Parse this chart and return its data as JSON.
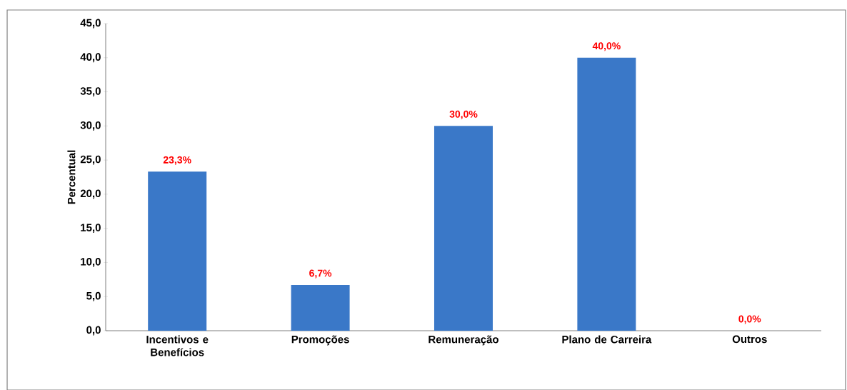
{
  "chart_data": {
    "type": "bar",
    "ylabel": "Percentual",
    "categories": [
      "Incentivos e Benefícios",
      "Promoções",
      "Remuneração",
      "Plano de Carreira",
      "Outros"
    ],
    "values": [
      23.3,
      6.7,
      30.0,
      40.0,
      0.0
    ],
    "value_labels": [
      "23,3%",
      "6,7%",
      "30,0%",
      "40,0%",
      "0,0%"
    ],
    "color": "#3a78c8",
    "ylim": [
      0,
      45
    ],
    "yticks": [
      {
        "value": 0,
        "label": "0,0"
      },
      {
        "value": 5,
        "label": "5,0"
      },
      {
        "value": 10,
        "label": "10,0"
      },
      {
        "value": 15,
        "label": "15,0"
      },
      {
        "value": 20,
        "label": "20,0"
      },
      {
        "value": 25,
        "label": "25,0"
      },
      {
        "value": 30,
        "label": "30,0"
      },
      {
        "value": 35,
        "label": "35,0"
      },
      {
        "value": 40,
        "label": "40,0"
      },
      {
        "value": 45,
        "label": "45,0"
      }
    ],
    "grid": false
  }
}
